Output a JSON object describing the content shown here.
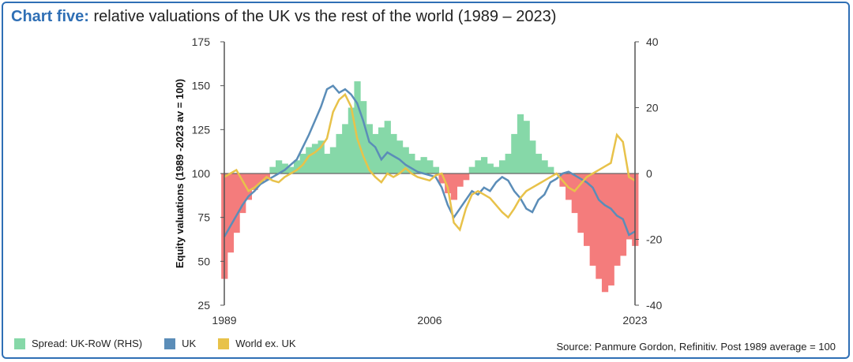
{
  "title": {
    "lead": "Chart five:",
    "text": "relative valuations of the UK vs the rest of the world (1989 – 2023)"
  },
  "source": "Source: Panmure Gordon, Refinitiv. Post 1989 average = 100",
  "colors": {
    "spread_pos": "#86d8a8",
    "spread_neg": "#f47c7c",
    "uk": "#5b8db8",
    "world": "#e8c24a",
    "axis": "#555555"
  },
  "chart_data": {
    "type": "line",
    "title": "relative valuations of the UK vs the rest of the world (1989 – 2023)",
    "ylabel": "Equity valuations (1989 -2023 av = 100)",
    "xlabel": "",
    "xlim": [
      1989,
      2023
    ],
    "ylim": [
      25,
      175
    ],
    "y2lim": [
      -40,
      40
    ],
    "x_ticks": [
      {
        "value": 1989,
        "label": "1989"
      },
      {
        "value": 2006,
        "label": "2006"
      },
      {
        "value": 2023,
        "label": "2023"
      }
    ],
    "y_ticks": [
      {
        "value": 175,
        "label": "175"
      },
      {
        "value": 150,
        "label": "150"
      },
      {
        "value": 125,
        "label": "125"
      },
      {
        "value": 100,
        "label": "100"
      },
      {
        "value": 75,
        "label": "75"
      },
      {
        "value": 50,
        "label": "50"
      },
      {
        "value": 25,
        "label": "25"
      }
    ],
    "y2_ticks": [
      {
        "value": 40,
        "label": "40"
      },
      {
        "value": 20,
        "label": "20"
      },
      {
        "value": 0,
        "label": "0"
      },
      {
        "value": -20,
        "label": "-20"
      },
      {
        "value": -40,
        "label": "-40"
      }
    ],
    "legend": "bottom-left",
    "series": [
      {
        "name": "Spread: UK-RoW (RHS)",
        "kind": "area",
        "axis": "right",
        "x": [
          1989.0,
          1989.5,
          1990.0,
          1990.5,
          1991.0,
          1991.5,
          1992.0,
          1992.5,
          1993.0,
          1993.5,
          1994.0,
          1994.5,
          1995.0,
          1995.5,
          1996.0,
          1996.5,
          1997.0,
          1997.5,
          1998.0,
          1998.5,
          1999.0,
          1999.5,
          2000.0,
          2000.5,
          2001.0,
          2001.5,
          2002.0,
          2002.5,
          2003.0,
          2003.5,
          2004.0,
          2004.5,
          2005.0,
          2005.5,
          2006.0,
          2006.5,
          2007.0,
          2007.5,
          2008.0,
          2008.5,
          2009.0,
          2009.5,
          2010.0,
          2010.5,
          2011.0,
          2011.5,
          2012.0,
          2012.5,
          2013.0,
          2013.5,
          2014.0,
          2014.5,
          2015.0,
          2015.5,
          2016.0,
          2016.5,
          2017.0,
          2017.5,
          2018.0,
          2018.5,
          2019.0,
          2019.5,
          2020.0,
          2020.5,
          2021.0,
          2021.5,
          2022.0,
          2022.5,
          2023.0
        ],
        "values": [
          -32,
          -24,
          -18,
          -12,
          -8,
          -5,
          -3,
          -2,
          2,
          4,
          3,
          2,
          4,
          6,
          8,
          9,
          10,
          6,
          8,
          12,
          15,
          20,
          28,
          22,
          15,
          12,
          14,
          16,
          12,
          10,
          8,
          6,
          4,
          5,
          4,
          2,
          -3,
          -6,
          -8,
          -4,
          -2,
          2,
          4,
          5,
          3,
          2,
          4,
          6,
          12,
          18,
          16,
          10,
          6,
          4,
          2,
          0,
          -4,
          -8,
          -12,
          -18,
          -22,
          -28,
          -32,
          -36,
          -34,
          -28,
          -25,
          -20,
          -22
        ]
      },
      {
        "name": "UK",
        "kind": "line",
        "axis": "left",
        "x": [
          1989.0,
          1989.5,
          1990.0,
          1990.5,
          1991.0,
          1991.5,
          1992.0,
          1992.5,
          1993.0,
          1993.5,
          1994.0,
          1994.5,
          1995.0,
          1995.5,
          1996.0,
          1996.5,
          1997.0,
          1997.5,
          1998.0,
          1998.5,
          1999.0,
          1999.5,
          2000.0,
          2000.5,
          2001.0,
          2001.5,
          2002.0,
          2002.5,
          2003.0,
          2003.5,
          2004.0,
          2004.5,
          2005.0,
          2005.5,
          2006.0,
          2006.5,
          2007.0,
          2007.5,
          2008.0,
          2008.5,
          2009.0,
          2009.5,
          2010.0,
          2010.5,
          2011.0,
          2011.5,
          2012.0,
          2012.5,
          2013.0,
          2013.5,
          2014.0,
          2014.5,
          2015.0,
          2015.5,
          2016.0,
          2016.5,
          2017.0,
          2017.5,
          2018.0,
          2018.5,
          2019.0,
          2019.5,
          2020.0,
          2020.5,
          2021.0,
          2021.5,
          2022.0,
          2022.5,
          2023.0
        ],
        "values": [
          64,
          70,
          76,
          82,
          87,
          90,
          94,
          96,
          98,
          100,
          102,
          105,
          108,
          115,
          122,
          130,
          138,
          148,
          150,
          146,
          148,
          145,
          140,
          130,
          118,
          115,
          108,
          112,
          110,
          108,
          105,
          103,
          101,
          100,
          99,
          98,
          92,
          82,
          75,
          80,
          85,
          90,
          88,
          92,
          90,
          95,
          98,
          96,
          90,
          86,
          80,
          78,
          85,
          88,
          95,
          97,
          100,
          101,
          99,
          97,
          95,
          92,
          85,
          82,
          80,
          76,
          74,
          65,
          67
        ]
      },
      {
        "name": "World ex. UK",
        "kind": "line",
        "axis": "left",
        "x": [
          1989.0,
          1989.5,
          1990.0,
          1990.5,
          1991.0,
          1991.5,
          1992.0,
          1992.5,
          1993.0,
          1993.5,
          1994.0,
          1994.5,
          1995.0,
          1995.5,
          1996.0,
          1996.5,
          1997.0,
          1997.5,
          1998.0,
          1998.5,
          1999.0,
          1999.5,
          2000.0,
          2000.5,
          2001.0,
          2001.5,
          2002.0,
          2002.5,
          2003.0,
          2003.5,
          2004.0,
          2004.5,
          2005.0,
          2005.5,
          2006.0,
          2006.5,
          2007.0,
          2007.5,
          2008.0,
          2008.5,
          2009.0,
          2009.5,
          2010.0,
          2010.5,
          2011.0,
          2011.5,
          2012.0,
          2012.5,
          2013.0,
          2013.5,
          2014.0,
          2014.5,
          2015.0,
          2015.5,
          2016.0,
          2016.5,
          2017.0,
          2017.5,
          2018.0,
          2018.5,
          2019.0,
          2019.5,
          2020.0,
          2020.5,
          2021.0,
          2021.5,
          2022.0,
          2022.5,
          2023.0
        ],
        "values": [
          98,
          100,
          102,
          96,
          90,
          92,
          95,
          98,
          96,
          95,
          98,
          100,
          102,
          105,
          110,
          112,
          115,
          120,
          135,
          142,
          145,
          138,
          120,
          110,
          102,
          98,
          95,
          100,
          98,
          100,
          103,
          100,
          98,
          97,
          96,
          99,
          100,
          92,
          72,
          68,
          80,
          88,
          90,
          88,
          86,
          82,
          78,
          75,
          80,
          86,
          90,
          92,
          94,
          96,
          98,
          100,
          96,
          92,
          90,
          94,
          98,
          100,
          102,
          104,
          106,
          122,
          118,
          98,
          96
        ]
      }
    ]
  }
}
